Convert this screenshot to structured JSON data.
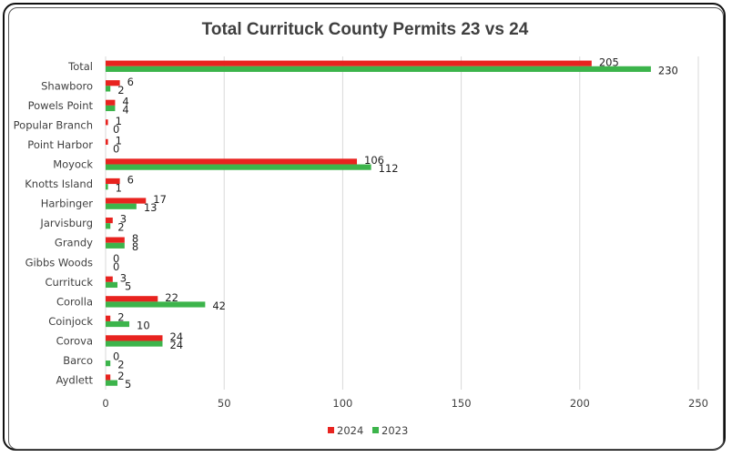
{
  "chart_data": {
    "type": "bar",
    "orientation": "horizontal",
    "title": "Total Currituck County Permits 23 vs 24",
    "categories": [
      "Total",
      "Shawboro",
      "Powels Point",
      "Popular Branch",
      "Point Harbor",
      "Moyock",
      "Knotts Island",
      "Harbinger",
      "Jarvisburg",
      "Grandy",
      "Gibbs Woods",
      "Currituck",
      "Corolla",
      "Coinjock",
      "Corova",
      "Barco",
      "Aydlett"
    ],
    "series": [
      {
        "name": "2024",
        "color": "#e8231f",
        "values": [
          205,
          6,
          4,
          1,
          1,
          106,
          6,
          17,
          3,
          8,
          0,
          3,
          22,
          2,
          24,
          0,
          2
        ]
      },
      {
        "name": "2023",
        "color": "#3cb44b",
        "values": [
          230,
          2,
          4,
          0,
          0,
          112,
          1,
          13,
          2,
          8,
          0,
          5,
          42,
          10,
          24,
          2,
          5
        ]
      }
    ],
    "xlim": [
      0,
      250
    ],
    "xticks": [
      0,
      50,
      100,
      150,
      200,
      250
    ],
    "grid": true,
    "legend": "bottom"
  }
}
